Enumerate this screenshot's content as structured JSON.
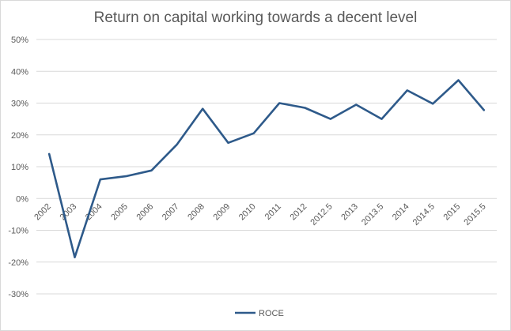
{
  "chart_data": {
    "type": "line",
    "title": "Return on capital working towards a decent level",
    "xlabel": "",
    "ylabel": "",
    "ylim": [
      -30,
      50
    ],
    "y_ticks": [
      "50%",
      "40%",
      "30%",
      "20%",
      "10%",
      "0%",
      "-10%",
      "-20%",
      "-30%"
    ],
    "y_tick_values": [
      50,
      40,
      30,
      20,
      10,
      0,
      -10,
      -20,
      -30
    ],
    "categories": [
      "2002",
      "2003",
      "2004",
      "2005",
      "2006",
      "2007",
      "2008",
      "2009",
      "2010",
      "2011",
      "2012",
      "2012.5",
      "2013",
      "2013.5",
      "2014",
      "2014.5",
      "2015",
      "2015.5"
    ],
    "series": [
      {
        "name": "ROCE",
        "color": "#2e5a8a",
        "values": [
          14,
          -18.5,
          6,
          7,
          8.8,
          17,
          28.2,
          17.5,
          20.5,
          30,
          28.5,
          25,
          29.5,
          25,
          34,
          29.8,
          37.2,
          27.8
        ]
      }
    ],
    "grid": true,
    "legend": "bottom"
  }
}
